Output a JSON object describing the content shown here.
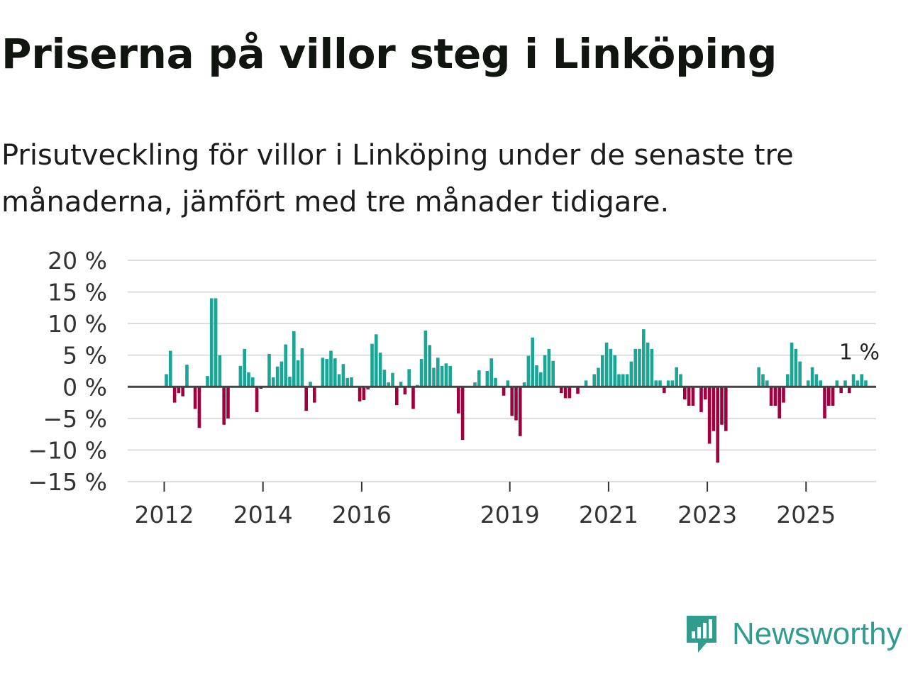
{
  "title": "Priserna på villor steg i Linköping",
  "subtitle": "Prisutveckling för villor i Linköping under de senaste tre månaderna, jämfört med tre månader tidigare.",
  "brand": "Newsworthy",
  "colors": {
    "positive": "#1aa595",
    "negative": "#a0003f",
    "grid": "#dddddd",
    "zero_line": "#444444",
    "brand": "#2f9c8e"
  },
  "chart_data": {
    "type": "bar",
    "title": "Priserna på villor steg i Linköping",
    "ylabel": "",
    "xlabel": "",
    "ylim": [
      -15,
      20
    ],
    "y_ticks": [
      20,
      15,
      10,
      5,
      0,
      -5,
      -10,
      -15
    ],
    "y_tick_labels": [
      "20 %",
      "15 %",
      "10 %",
      "5 %",
      "0 %",
      "−5 %",
      "−10 %",
      "−15 %"
    ],
    "x_ticks": [
      2012,
      2014,
      2016,
      2019,
      2021,
      2023,
      2025
    ],
    "x_tick_labels": [
      "2012",
      "2014",
      "2016",
      "2019",
      "2021",
      "2023",
      "2025"
    ],
    "x_start": 2011.25,
    "bar_width_years": 0.0833,
    "series": [
      {
        "name": "Prisutveckling villor Linköping",
        "start": {
          "year": 2012,
          "month": 1
        },
        "frequency": "monthly",
        "values": [
          2,
          5.7,
          -2.5,
          -1,
          -1.5,
          3.5,
          0,
          -3.5,
          -6.5,
          0,
          1.7,
          14,
          14,
          5,
          -6,
          -5,
          0,
          0,
          3.3,
          6,
          2.3,
          1.5,
          -4,
          -0.3,
          0,
          5.2,
          1.5,
          3.2,
          4,
          6.7,
          1.6,
          8.8,
          4.2,
          6.1,
          -3.8,
          0.8,
          -2.5,
          0,
          4.6,
          4.4,
          5.7,
          4.5,
          2,
          3.6,
          1.4,
          1.5,
          0,
          -2.3,
          -2.1,
          -0.4,
          6.8,
          8.3,
          5.4,
          2.7,
          0.7,
          2.2,
          -2.9,
          0.8,
          -1.2,
          2.8,
          -3.5,
          0.3,
          4.4,
          8.9,
          6.6,
          3,
          4.6,
          3.3,
          3.7,
          3.3,
          0,
          -4.2,
          -8.4,
          0,
          0,
          0.7,
          2.6,
          0,
          2.5,
          4.5,
          1.4,
          0,
          -1.4,
          1,
          -4.6,
          -5.3,
          -7.8,
          0.7,
          4.9,
          7.8,
          3.4,
          2.3,
          5,
          6,
          4.1,
          0,
          -1,
          -1.8,
          -1.8,
          0,
          -1.1,
          0,
          1,
          0,
          2,
          3,
          5,
          7,
          6,
          5,
          2,
          2,
          2,
          4,
          6,
          6,
          9.1,
          7,
          6,
          1,
          1,
          -1,
          1,
          1,
          3.1,
          2,
          -2,
          -3,
          -3,
          0,
          -4,
          -2,
          -9,
          -7,
          -12,
          -6,
          -7,
          0,
          0,
          0,
          0,
          0,
          0,
          0,
          3.1,
          2,
          1,
          -3,
          -3,
          -5,
          -2.5,
          2,
          7,
          6,
          4,
          0,
          1,
          3.1,
          2,
          1,
          -5,
          -3,
          -3,
          1,
          -1,
          1,
          -1,
          2,
          1,
          2,
          1
        ]
      }
    ],
    "last_value_label": "1 %"
  }
}
